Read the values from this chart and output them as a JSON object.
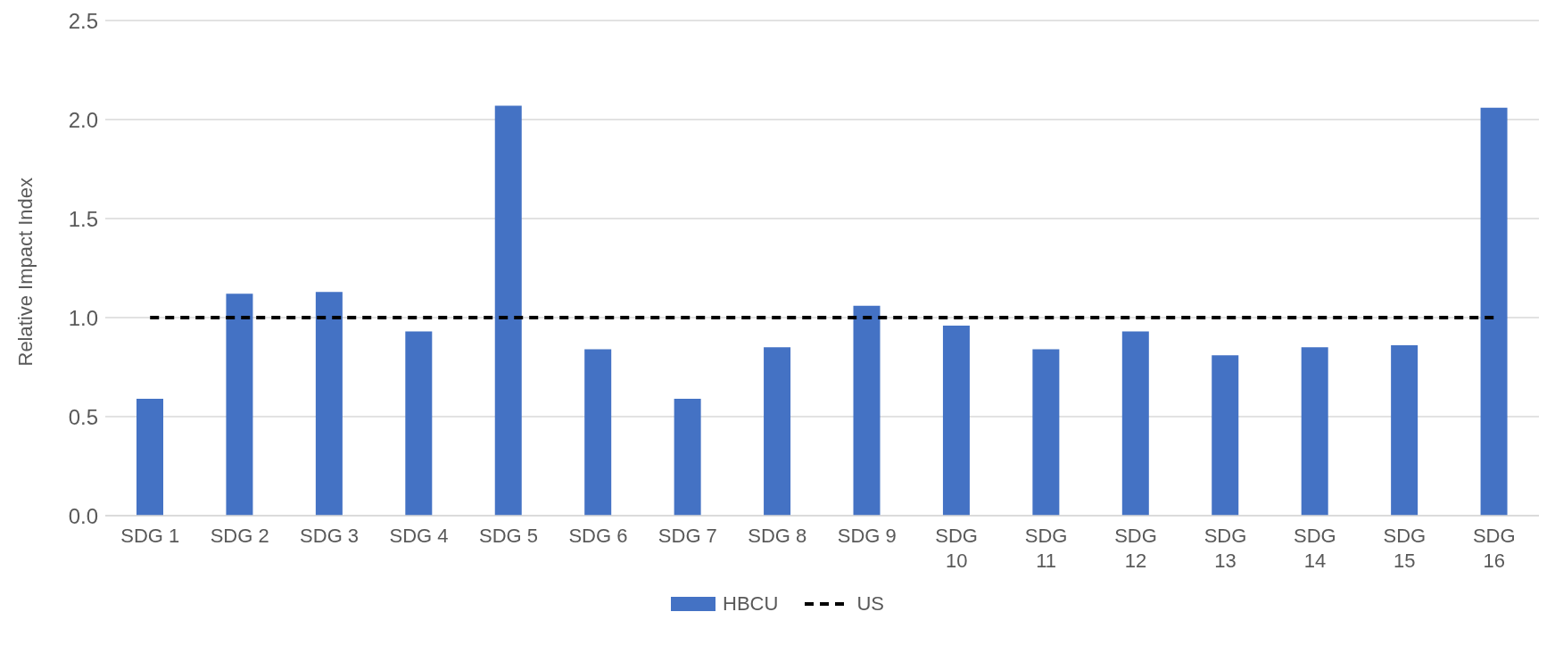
{
  "chart_data": {
    "type": "bar",
    "ylabel": "Relative Impact Index",
    "categories": [
      "SDG 1",
      "SDG 2",
      "SDG 3",
      "SDG 4",
      "SDG 5",
      "SDG 6",
      "SDG 7",
      "SDG 8",
      "SDG 9",
      "SDG 10",
      "SDG 11",
      "SDG 12",
      "SDG 13",
      "SDG 14",
      "SDG 15",
      "SDG 16"
    ],
    "series": [
      {
        "name": "HBCU",
        "color": "#4472c4",
        "values": [
          0.59,
          1.12,
          1.13,
          0.93,
          2.07,
          0.84,
          0.59,
          0.85,
          1.06,
          0.96,
          0.84,
          0.93,
          0.81,
          0.85,
          0.86,
          2.06
        ]
      },
      {
        "name": "US",
        "type": "line",
        "color": "#000000",
        "line_style": "dashed",
        "marker": "none",
        "values": [
          1.0,
          1.0,
          1.0,
          1.0,
          1.0,
          1.0,
          1.0,
          1.0,
          1.0,
          1.0,
          1.0,
          1.0,
          1.0,
          1.0,
          1.0,
          1.0
        ]
      }
    ],
    "ylim": [
      0,
      2.5
    ],
    "yticks": [
      {
        "value": 0,
        "label": "0.0"
      },
      {
        "value": 0.5,
        "label": "0.5"
      },
      {
        "value": 1,
        "label": "1.0"
      },
      {
        "value": 1.5,
        "label": "1.5"
      },
      {
        "value": 2,
        "label": "2.0"
      },
      {
        "value": 2.5,
        "label": "2.5"
      }
    ],
    "grid": "y",
    "legend": "bottom"
  }
}
